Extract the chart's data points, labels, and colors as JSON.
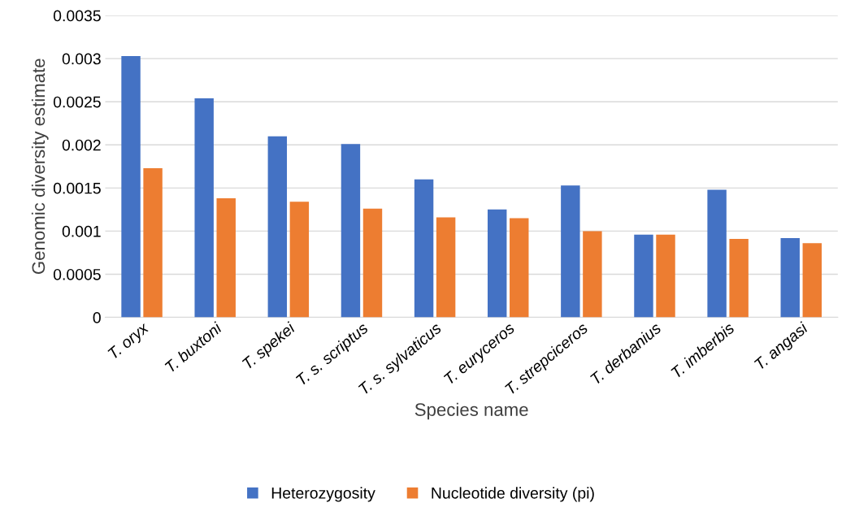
{
  "chart_data": {
    "type": "bar",
    "xlabel": "Species name",
    "ylabel": "Genomic diversity estimate",
    "categories": [
      "T. oryx",
      "T. buxtoni",
      "T. spekei",
      "T. s. scriptus",
      "T. s. sylvaticus",
      "T. euryceros",
      "T. strepciceros",
      "T. derbanius",
      "T. imberbis",
      "T. angasi"
    ],
    "series": [
      {
        "name": "Heterozygosity",
        "color": "#4472c4",
        "values": [
          0.00303,
          0.00254,
          0.0021,
          0.00201,
          0.0016,
          0.00125,
          0.00153,
          0.00096,
          0.00148,
          0.00092
        ]
      },
      {
        "name": "Nucleotide diversity (pi)",
        "color": "#ed7d31",
        "values": [
          0.00173,
          0.00138,
          0.00134,
          0.00126,
          0.00116,
          0.00115,
          0.001,
          0.00096,
          0.00091,
          0.00086
        ]
      }
    ],
    "ylim": [
      0,
      0.0035
    ],
    "yticks": [
      0,
      0.0005,
      0.001,
      0.0015,
      0.002,
      0.0025,
      0.003,
      0.0035
    ],
    "grid": "y",
    "legend": "bottom"
  }
}
